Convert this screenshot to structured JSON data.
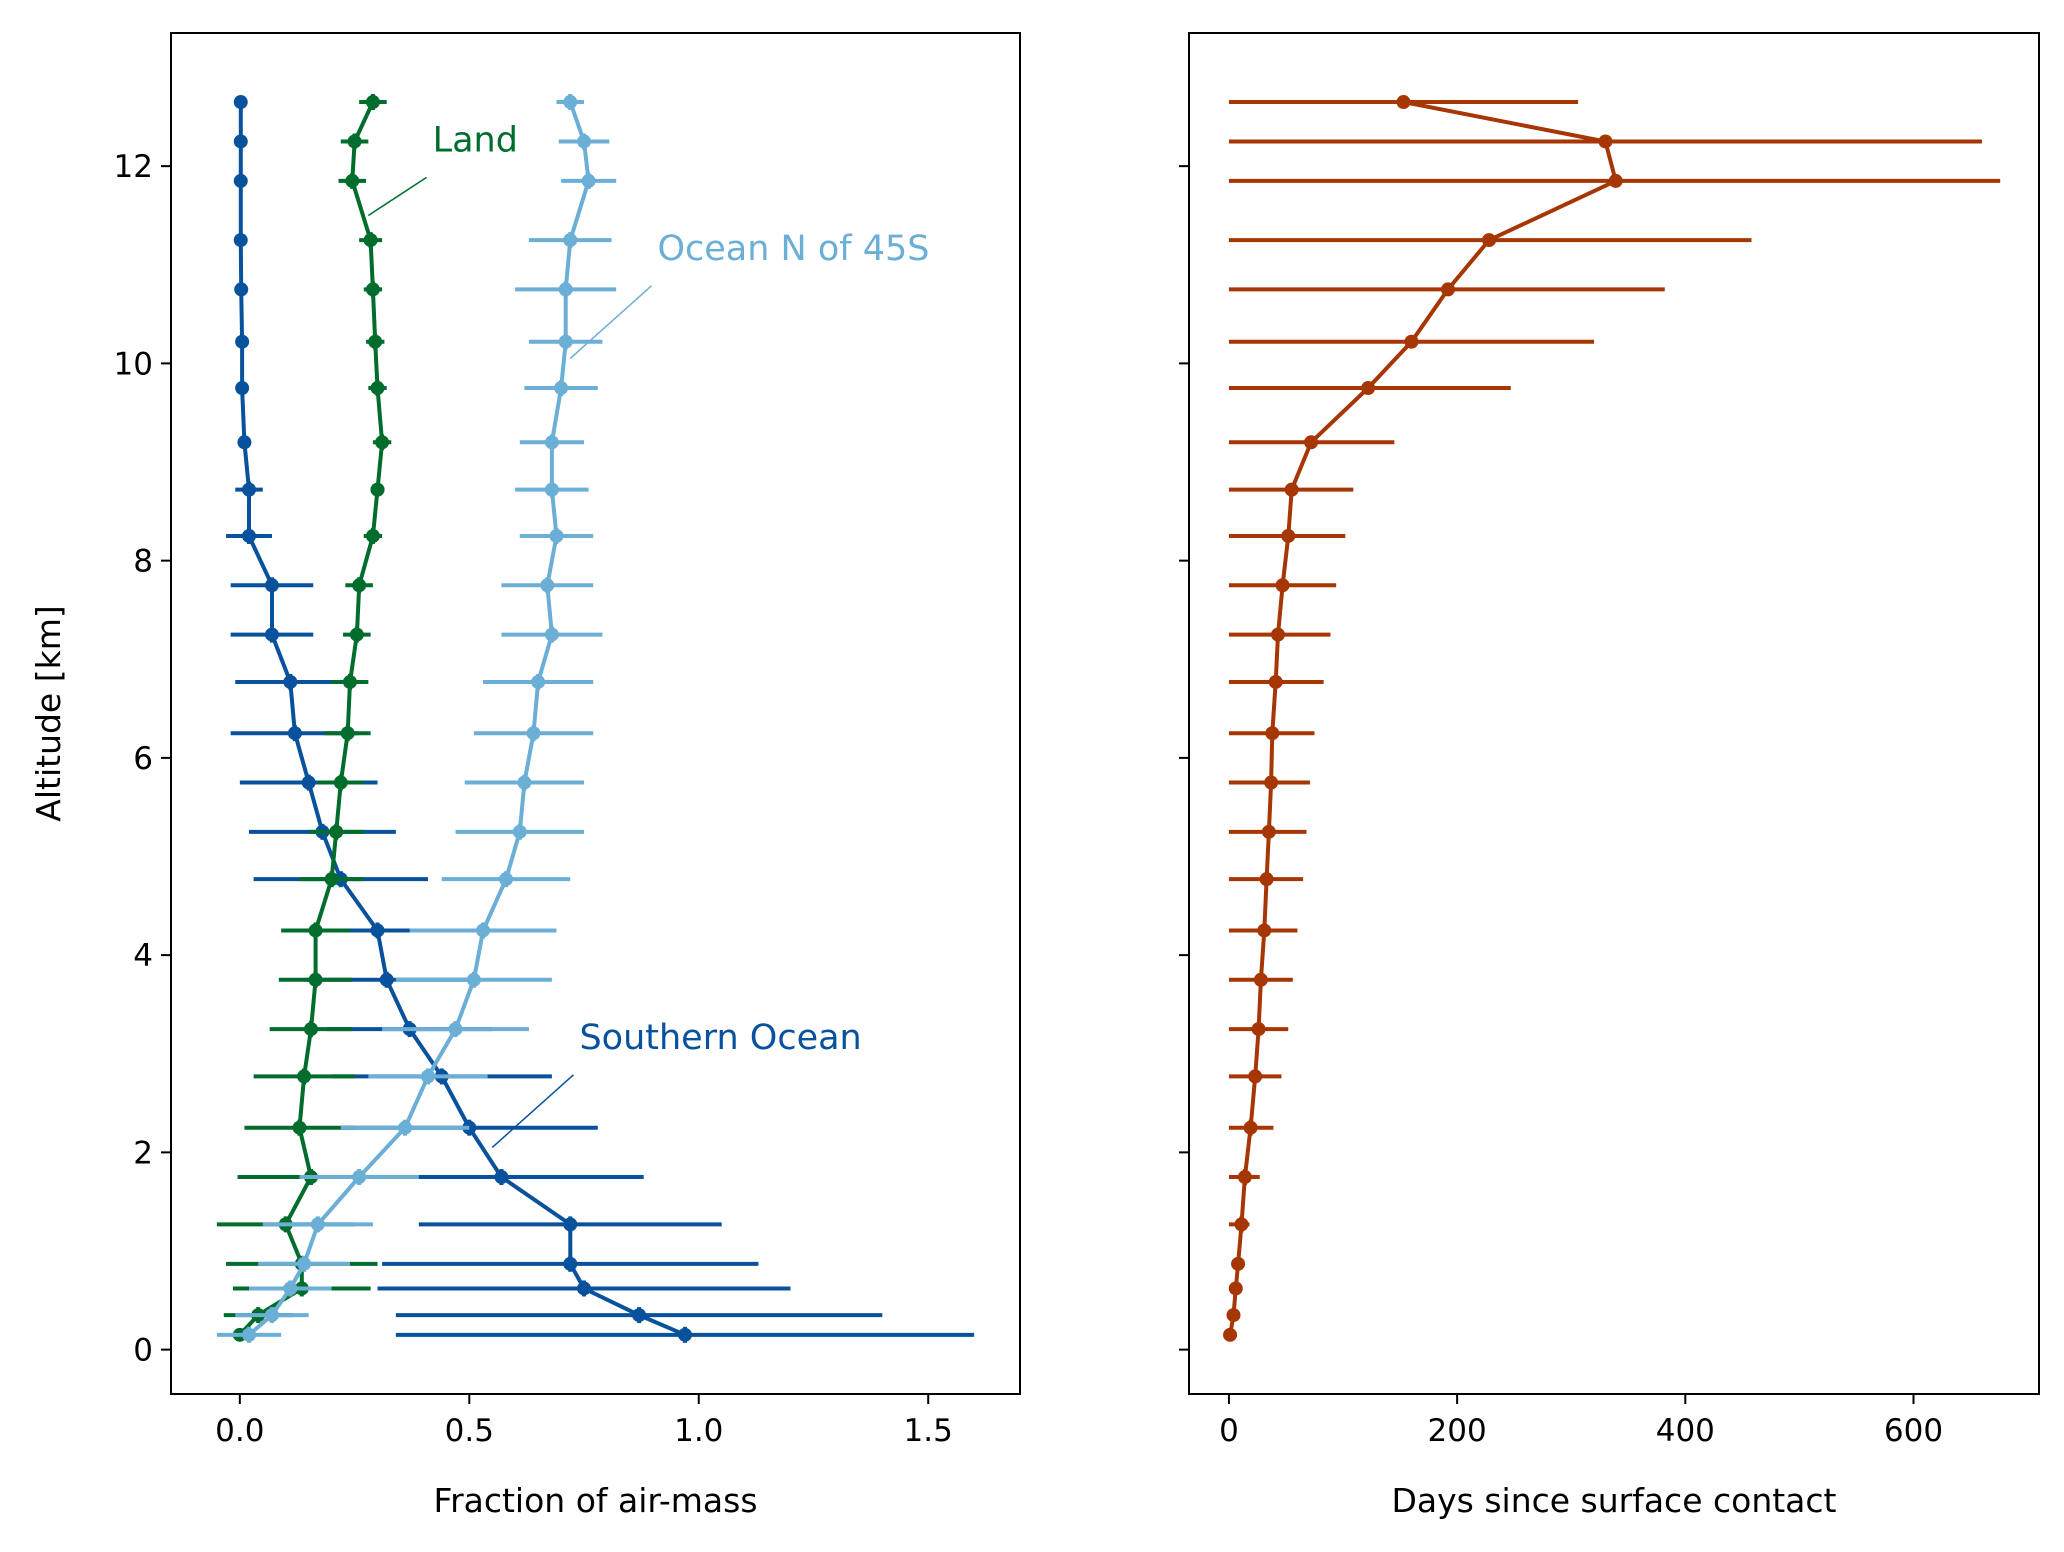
{
  "chart_data": [
    {
      "type": "line",
      "xlabel": "Fraction of air-mass",
      "ylabel": "Altitude [km]",
      "xlim": [
        -0.15,
        1.7
      ],
      "ylim": [
        -0.45,
        13.35
      ],
      "xticks": [
        0.0,
        0.5,
        1.0,
        1.5
      ],
      "xtick_labels": [
        "0.0",
        "0.5",
        "1.0",
        "1.5"
      ],
      "yticks": [
        0,
        2,
        4,
        6,
        8,
        10,
        12
      ],
      "ytick_labels": [
        "0",
        "2",
        "4",
        "6",
        "8",
        "10",
        "12"
      ],
      "grid": false,
      "legend": "none",
      "altitude": [
        0.15,
        0.35,
        0.62,
        0.87,
        1.27,
        1.75,
        2.25,
        2.77,
        3.25,
        3.75,
        4.25,
        4.77,
        5.25,
        5.75,
        6.25,
        6.77,
        7.25,
        7.75,
        8.25,
        8.72,
        9.2,
        9.75,
        10.22,
        10.75,
        11.25,
        11.85,
        12.25,
        12.65
      ],
      "series": [
        {
          "name": "Southern Ocean",
          "color": "#08519c",
          "x": [
            0.97,
            0.87,
            0.75,
            0.72,
            0.72,
            0.57,
            0.5,
            0.44,
            0.37,
            0.32,
            0.3,
            0.22,
            0.18,
            0.15,
            0.12,
            0.11,
            0.07,
            0.07,
            0.02,
            0.02,
            0.01,
            0.005,
            0.005,
            0.003,
            0.002,
            0.002,
            0.002,
            0.002
          ],
          "xerr": [
            0.63,
            0.53,
            0.45,
            0.41,
            0.33,
            0.31,
            0.28,
            0.24,
            0.18,
            0.18,
            0.2,
            0.19,
            0.16,
            0.15,
            0.14,
            0.12,
            0.09,
            0.09,
            0.05,
            0.03,
            0.0,
            0.0,
            0.0,
            0.0,
            0.0,
            0.0,
            0.0,
            0.0
          ]
        },
        {
          "name": "Land",
          "color": "#006d2c",
          "x": [
            0.0,
            0.04,
            0.135,
            0.135,
            0.1,
            0.155,
            0.13,
            0.14,
            0.155,
            0.165,
            0.165,
            0.2,
            0.21,
            0.22,
            0.235,
            0.24,
            0.255,
            0.26,
            0.29,
            0.3,
            0.31,
            0.3,
            0.295,
            0.29,
            0.285,
            0.245,
            0.25,
            0.29
          ],
          "xerr": [
            0.0,
            0.075,
            0.15,
            0.165,
            0.15,
            0.16,
            0.12,
            0.11,
            0.09,
            0.08,
            0.075,
            0.07,
            0.06,
            0.05,
            0.05,
            0.04,
            0.03,
            0.03,
            0.02,
            0.015,
            0.02,
            0.02,
            0.02,
            0.02,
            0.025,
            0.03,
            0.03,
            0.03
          ]
        },
        {
          "name": "Ocean N of 45S",
          "color": "#6baed6",
          "x": [
            0.02,
            0.07,
            0.11,
            0.14,
            0.17,
            0.26,
            0.36,
            0.41,
            0.47,
            0.51,
            0.53,
            0.58,
            0.61,
            0.62,
            0.64,
            0.65,
            0.68,
            0.67,
            0.69,
            0.68,
            0.68,
            0.7,
            0.71,
            0.71,
            0.72,
            0.76,
            0.75,
            0.72
          ],
          "xerr": [
            0.07,
            0.08,
            0.09,
            0.1,
            0.12,
            0.13,
            0.14,
            0.13,
            0.16,
            0.17,
            0.16,
            0.14,
            0.14,
            0.13,
            0.13,
            0.12,
            0.11,
            0.1,
            0.08,
            0.08,
            0.07,
            0.08,
            0.08,
            0.11,
            0.09,
            0.06,
            0.055,
            0.03
          ]
        }
      ],
      "annotations": [
        {
          "text": "Land",
          "color": "#006d2c",
          "xy": [
            0.28,
            11.5
          ],
          "xytext": [
            0.42,
            12.15
          ]
        },
        {
          "text": "Ocean N of 45S",
          "color": "#6baed6",
          "xy": [
            0.72,
            10.05
          ],
          "xytext": [
            0.91,
            11.05
          ]
        },
        {
          "text": "Southern Ocean",
          "color": "#08519c",
          "xy": [
            0.55,
            2.05
          ],
          "xytext": [
            0.74,
            3.05
          ]
        }
      ]
    },
    {
      "type": "line",
      "xlabel": "Days since surface contact",
      "ylabel": "",
      "xlim": [
        -35,
        710
      ],
      "ylim": [
        -0.45,
        13.35
      ],
      "xticks": [
        0,
        200,
        400,
        600
      ],
      "xtick_labels": [
        "0",
        "200",
        "400",
        "600"
      ],
      "yticks": [
        0,
        2,
        4,
        6,
        8,
        10,
        12
      ],
      "ytick_labels": [],
      "grid": false,
      "legend": "none",
      "series": [
        {
          "color": "#a63603",
          "altitude": [
            0.15,
            0.35,
            0.62,
            0.87,
            1.27,
            1.75,
            2.25,
            2.77,
            3.25,
            3.75,
            4.25,
            4.77,
            5.25,
            5.75,
            6.25,
            6.77,
            7.25,
            7.75,
            8.25,
            8.72,
            9.2,
            9.75,
            10.22,
            10.75,
            11.25,
            11.85,
            12.25,
            12.65
          ],
          "x": [
            1,
            4,
            6,
            8,
            11,
            14,
            19,
            23,
            26,
            28,
            31,
            33,
            35,
            37,
            38,
            41,
            43,
            47,
            52,
            55,
            72,
            122,
            160,
            192,
            228,
            339,
            330,
            153
          ],
          "x_low": [
            1,
            4,
            6,
            8,
            0,
            0,
            0,
            0,
            0,
            0,
            0,
            0,
            0,
            0,
            0,
            0,
            0,
            0,
            0,
            0,
            0,
            0,
            0,
            0,
            0,
            0,
            0,
            0
          ],
          "x_high": [
            1,
            4,
            6,
            8,
            18,
            27,
            39,
            46,
            52,
            56,
            60,
            65,
            68,
            71,
            75,
            83,
            89,
            94,
            102,
            109,
            145,
            247,
            320,
            382,
            458,
            676,
            660,
            306
          ]
        }
      ]
    }
  ]
}
